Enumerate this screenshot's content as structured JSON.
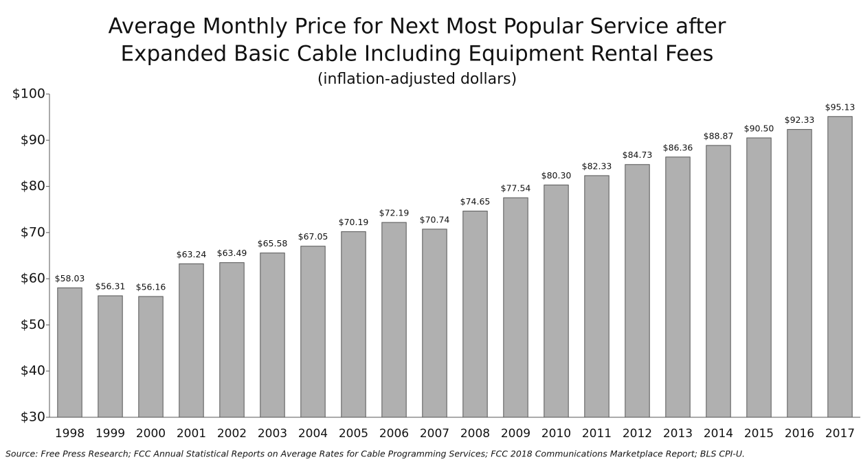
{
  "chart_data": {
    "type": "bar",
    "title": [
      "Average Monthly Price for Next Most Popular Service after",
      "Expanded Basic Cable Including Equipment Rental Fees"
    ],
    "subtitle": "(inflation-adjusted dollars)",
    "source": "Source:  Free Press Research; FCC Annual Statistical Reports on Average Rates for Cable Programming Services; FCC 2018 Communications Marketplace Report; BLS CPI-U.",
    "categories": [
      "1998",
      "1999",
      "2000",
      "2001",
      "2002",
      "2003",
      "2004",
      "2005",
      "2006",
      "2007",
      "2008",
      "2009",
      "2010",
      "2011",
      "2012",
      "2013",
      "2014",
      "2015",
      "2016",
      "2017"
    ],
    "values": [
      58.03,
      56.31,
      56.16,
      63.24,
      63.49,
      65.58,
      67.05,
      70.19,
      72.19,
      70.74,
      74.65,
      77.54,
      80.3,
      82.33,
      84.73,
      86.36,
      88.87,
      90.5,
      92.33,
      95.13
    ],
    "value_labels": [
      "$58.03",
      "$56.31",
      "$56.16",
      "$63.24",
      "$63.49",
      "$65.58",
      "$67.05",
      "$70.19",
      "$72.19",
      "$70.74",
      "$74.65",
      "$77.54",
      "$80.30",
      "$82.33",
      "$84.73",
      "$86.36",
      "$88.87",
      "$90.50",
      "$92.33",
      "$95.13"
    ],
    "color": "#b0b0b0",
    "ylim": [
      30,
      100
    ],
    "yticks": [
      {
        "value": 30,
        "label": "$30"
      },
      {
        "value": 40,
        "label": "$40"
      },
      {
        "value": 50,
        "label": "$50"
      },
      {
        "value": 60,
        "label": "$60"
      },
      {
        "value": 70,
        "label": "$70"
      },
      {
        "value": 80,
        "label": "$80"
      },
      {
        "value": 90,
        "label": "$90"
      },
      {
        "value": 100,
        "label": "$100"
      }
    ],
    "grid": false
  }
}
